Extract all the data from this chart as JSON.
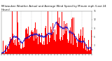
{
  "title": "Milwaukee Weather Actual and Average Wind Speed by Minute mph (Last 24 Hours)",
  "bar_color": "#ff0000",
  "avg_color": "#0000cd",
  "background_color": "#ffffff",
  "plot_bg_color": "#ffffff",
  "ylim": [
    0,
    15
  ],
  "yticks": [
    3,
    6,
    9,
    12,
    15
  ],
  "num_points": 1440,
  "title_fontsize": 2.8,
  "tick_fontsize": 2.2,
  "seed": 12345
}
